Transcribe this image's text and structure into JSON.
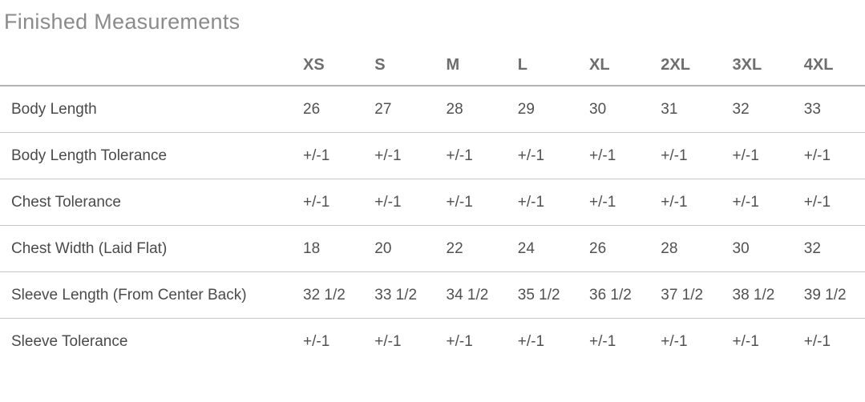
{
  "title": "Finished Measurements",
  "colors": {
    "title_text": "#8b8b8b",
    "header_text": "#6e6e6e",
    "cell_text": "#515151",
    "divider": "#c7c7c7",
    "background": "#ffffff"
  },
  "chart_data": {
    "type": "table",
    "title": "Finished Measurements",
    "columns": [
      "XS",
      "S",
      "M",
      "L",
      "XL",
      "2XL",
      "3XL",
      "4XL"
    ],
    "rows": [
      {
        "label": "Body Length",
        "values": [
          "26",
          "27",
          "28",
          "29",
          "30",
          "31",
          "32",
          "33"
        ]
      },
      {
        "label": "Body Length Tolerance",
        "values": [
          "+/-1",
          "+/-1",
          "+/-1",
          "+/-1",
          "+/-1",
          "+/-1",
          "+/-1",
          "+/-1"
        ]
      },
      {
        "label": "Chest Tolerance",
        "values": [
          "+/-1",
          "+/-1",
          "+/-1",
          "+/-1",
          "+/-1",
          "+/-1",
          "+/-1",
          "+/-1"
        ]
      },
      {
        "label": "Chest Width (Laid Flat)",
        "values": [
          "18",
          "20",
          "22",
          "24",
          "26",
          "28",
          "30",
          "32"
        ]
      },
      {
        "label": "Sleeve Length (From Center Back)",
        "values": [
          "32 1/2",
          "33 1/2",
          "34 1/2",
          "35 1/2",
          "36 1/2",
          "37 1/2",
          "38 1/2",
          "39 1/2"
        ]
      },
      {
        "label": "Sleeve Tolerance",
        "values": [
          "+/-1",
          "+/-1",
          "+/-1",
          "+/-1",
          "+/-1",
          "+/-1",
          "+/-1",
          "+/-1"
        ]
      }
    ]
  }
}
